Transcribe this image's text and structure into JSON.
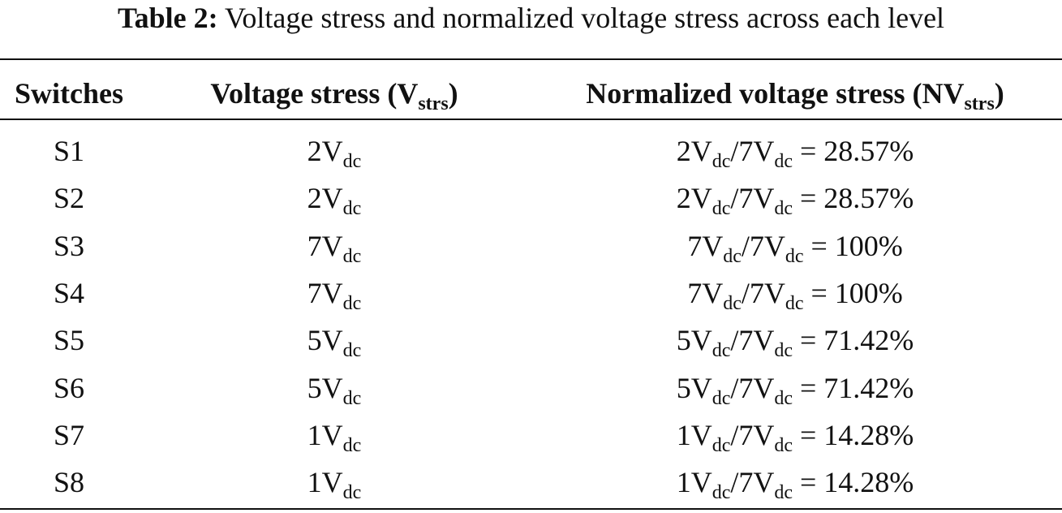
{
  "caption": {
    "label": "Table 2:",
    "text": "Voltage stress and normalized voltage stress across each level"
  },
  "header": {
    "switches": "Switches",
    "voltage_stress_main": "Voltage stress (V",
    "voltage_stress_sub": "strs",
    "voltage_stress_close": ")",
    "normalized_main": "Normalized voltage stress (NV",
    "normalized_sub": "strs",
    "normalized_close": ")"
  },
  "rows": [
    {
      "switch": "S1",
      "v_coef": "2V",
      "v_sub": "dc",
      "n_num": "2V",
      "n_num_sub": "dc",
      "n_den": "/7V",
      "n_den_sub": "dc",
      "n_result": " = 28.57%"
    },
    {
      "switch": "S2",
      "v_coef": "2V",
      "v_sub": "dc",
      "n_num": "2V",
      "n_num_sub": "dc",
      "n_den": "/7V",
      "n_den_sub": "dc",
      "n_result": " = 28.57%"
    },
    {
      "switch": "S3",
      "v_coef": "7V",
      "v_sub": "dc",
      "n_num": "7V",
      "n_num_sub": "dc",
      "n_den": "/7V",
      "n_den_sub": "dc",
      "n_result": " = 100%"
    },
    {
      "switch": "S4",
      "v_coef": "7V",
      "v_sub": "dc",
      "n_num": "7V",
      "n_num_sub": "dc",
      "n_den": "/7V",
      "n_den_sub": "dc",
      "n_result": " = 100%"
    },
    {
      "switch": "S5",
      "v_coef": "5V",
      "v_sub": "dc",
      "n_num": "5V",
      "n_num_sub": "dc",
      "n_den": "/7V",
      "n_den_sub": "dc",
      "n_result": " = 71.42%"
    },
    {
      "switch": "S6",
      "v_coef": "5V",
      "v_sub": "dc",
      "n_num": "5V",
      "n_num_sub": "dc",
      "n_den": "/7V",
      "n_den_sub": "dc",
      "n_result": " = 71.42%"
    },
    {
      "switch": "S7",
      "v_coef": "1V",
      "v_sub": "dc",
      "n_num": "1V",
      "n_num_sub": "dc",
      "n_den": "/7V",
      "n_den_sub": "dc",
      "n_result": " = 14.28%"
    },
    {
      "switch": "S8",
      "v_coef": "1V",
      "v_sub": "dc",
      "n_num": "1V",
      "n_num_sub": "dc",
      "n_den": "/7V",
      "n_den_sub": "dc",
      "n_result": " = 14.28%"
    }
  ]
}
